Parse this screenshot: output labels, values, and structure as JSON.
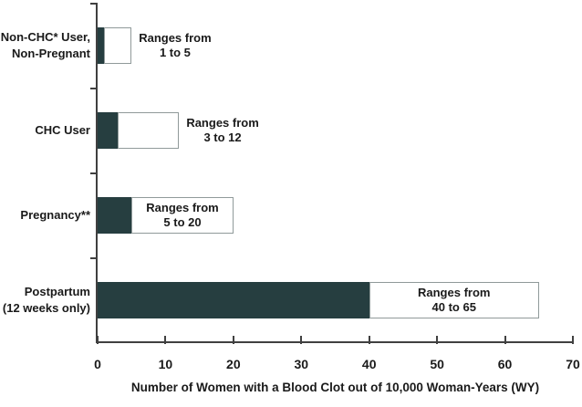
{
  "chart_data": {
    "type": "bar",
    "orientation": "horizontal",
    "title": "",
    "xlabel": "Number of Women with a Blood Clot out of 10,000 Woman-Years (WY)",
    "xlim": [
      0,
      70
    ],
    "x_ticks": [
      0,
      10,
      20,
      30,
      40,
      50,
      60,
      70
    ],
    "grid": false,
    "legend": false,
    "colors": {
      "bar_low_fill": "#263e40",
      "bar_range_fill": "#ffffff",
      "bar_range_border": "#909a9a",
      "axis": "#404040",
      "text": "#1a1a1a",
      "background": "#ffffff"
    },
    "rows": [
      {
        "label_lines": [
          "Non-CHC* User,",
          "Non-Pregnant"
        ],
        "low": 1,
        "high": 5,
        "annotation_lines": [
          "Ranges from",
          "1 to 5"
        ],
        "annotation_placement": "outside"
      },
      {
        "label_lines": [
          "CHC User"
        ],
        "low": 3,
        "high": 12,
        "annotation_lines": [
          "Ranges from",
          "3 to 12"
        ],
        "annotation_placement": "outside"
      },
      {
        "label_lines": [
          "Pregnancy**"
        ],
        "low": 5,
        "high": 20,
        "annotation_lines": [
          "Ranges from",
          "5 to 20"
        ],
        "annotation_placement": "inside"
      },
      {
        "label_lines": [
          "Postpartum",
          "(12 weeks only)"
        ],
        "low": 40,
        "high": 65,
        "annotation_lines": [
          "Ranges from",
          "40 to 65"
        ],
        "annotation_placement": "inside"
      }
    ]
  }
}
